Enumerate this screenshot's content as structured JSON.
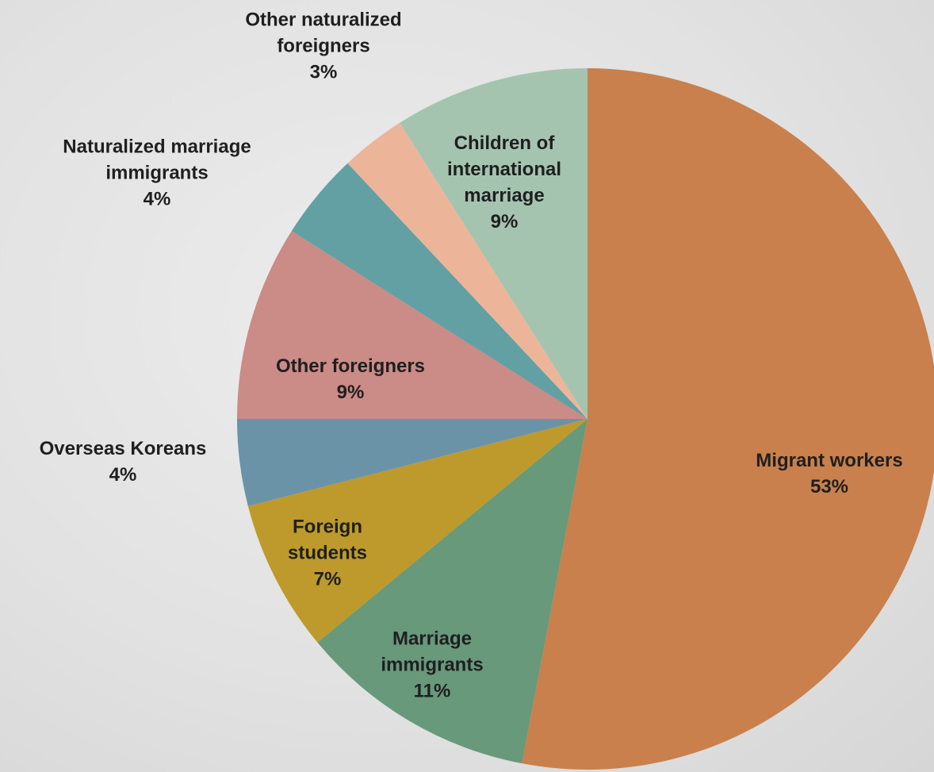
{
  "chart_data": {
    "type": "pie",
    "categories": [
      "Migrant workers",
      "Marriage immigrants",
      "Foreign students",
      "Overseas Koreans",
      "Other foreigners",
      "Naturalized marriage immigrants",
      "Other naturalized foreigners",
      "Children of international marriage"
    ],
    "values": [
      53,
      11,
      7,
      4,
      9,
      4,
      3,
      9
    ],
    "value_labels": [
      "53%",
      "11%",
      "7%",
      "4%",
      "9%",
      "4%",
      "3%",
      "9%"
    ],
    "colors": [
      "#c9804c",
      "#67997a",
      "#bd9a2b",
      "#6b93a8",
      "#cb8b86",
      "#62a0a4",
      "#ecb599",
      "#a4c4b0"
    ]
  }
}
